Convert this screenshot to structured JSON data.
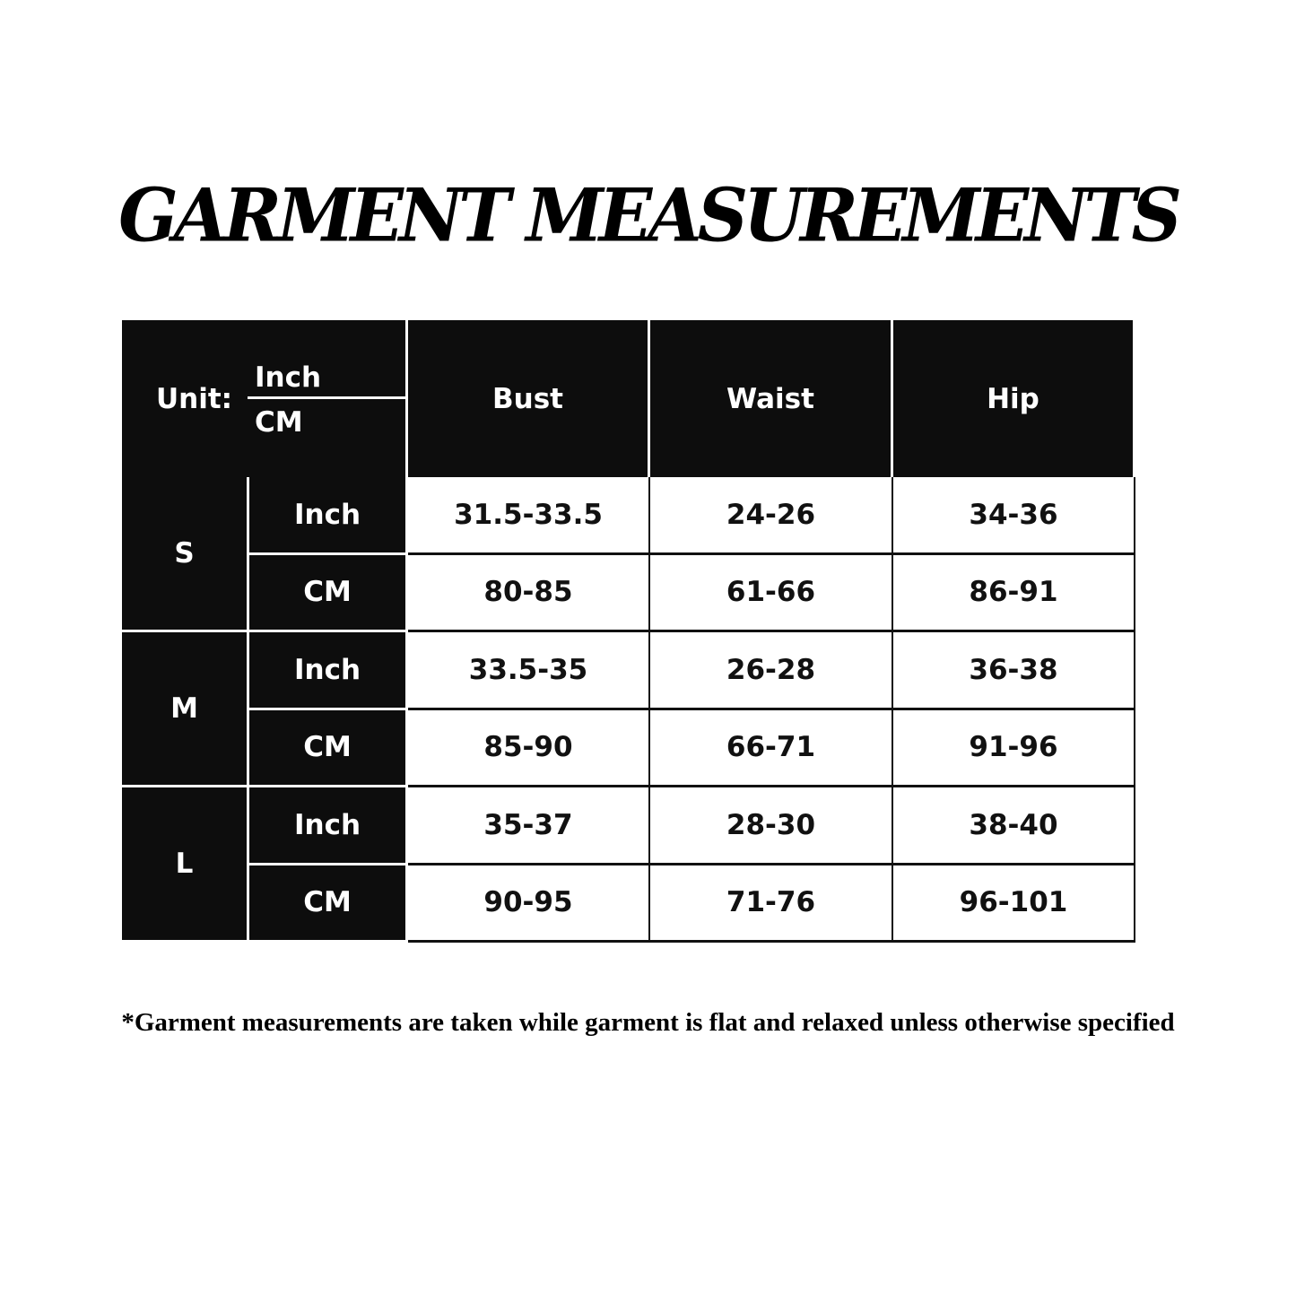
{
  "title": "GARMENT MEASUREMENTS",
  "table": {
    "unit_label": "Unit:",
    "unit_top": "Inch",
    "unit_bottom": "CM",
    "columns": [
      "Bust",
      "Waist",
      "Hip"
    ],
    "sizes": [
      {
        "size": "S",
        "rows": [
          {
            "unit": "Inch",
            "values": [
              "31.5-33.5",
              "24-26",
              "34-36"
            ]
          },
          {
            "unit": "CM",
            "values": [
              "80-85",
              "61-66",
              "86-91"
            ]
          }
        ]
      },
      {
        "size": "M",
        "rows": [
          {
            "unit": "Inch",
            "values": [
              "33.5-35",
              "26-28",
              "36-38"
            ]
          },
          {
            "unit": "CM",
            "values": [
              "85-90",
              "66-71",
              "91-96"
            ]
          }
        ]
      },
      {
        "size": "L",
        "rows": [
          {
            "unit": "Inch",
            "values": [
              "35-37",
              "28-30",
              "38-40"
            ]
          },
          {
            "unit": "CM",
            "values": [
              "90-95",
              "71-76",
              "96-101"
            ]
          }
        ]
      }
    ]
  },
  "footnote": "*Garment measurements are taken while garment is flat and relaxed unless otherwise specified"
}
